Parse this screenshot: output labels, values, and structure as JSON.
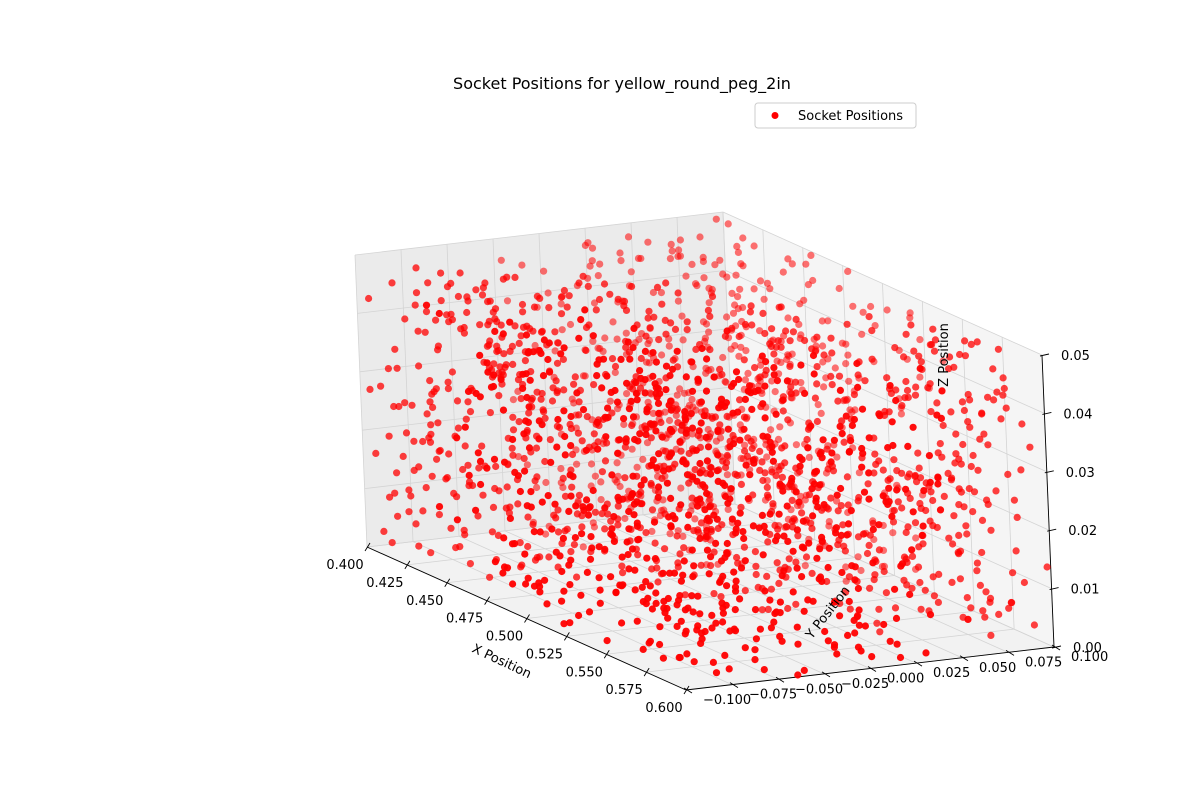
{
  "chart_data": {
    "type": "scatter",
    "projection": "3d",
    "title": "Socket Positions for yellow_round_peg_2in",
    "xlabel": "X Position",
    "ylabel": "Y Position",
    "zlabel": "Z Position",
    "xlim": [
      0.4,
      0.6
    ],
    "ylim": [
      -0.1,
      0.1
    ],
    "zlim": [
      0.0,
      0.05
    ],
    "x_ticks": [
      "0.400",
      "0.425",
      "0.450",
      "0.475",
      "0.500",
      "0.525",
      "0.550",
      "0.575",
      "0.600"
    ],
    "y_ticks": [
      "−0.100",
      "−0.075",
      "−0.050",
      "−0.025",
      "0.000",
      "0.025",
      "0.050",
      "0.075",
      "0.100"
    ],
    "z_ticks": [
      "0.00",
      "0.01",
      "0.02",
      "0.03",
      "0.04",
      "0.05"
    ],
    "grid": true,
    "legend_position": "upper-right",
    "series": [
      {
        "name": "Socket Positions",
        "color": "#ff0000",
        "marker": "circle",
        "distribution": "uniform within box",
        "point_count": 2000
      }
    ]
  }
}
